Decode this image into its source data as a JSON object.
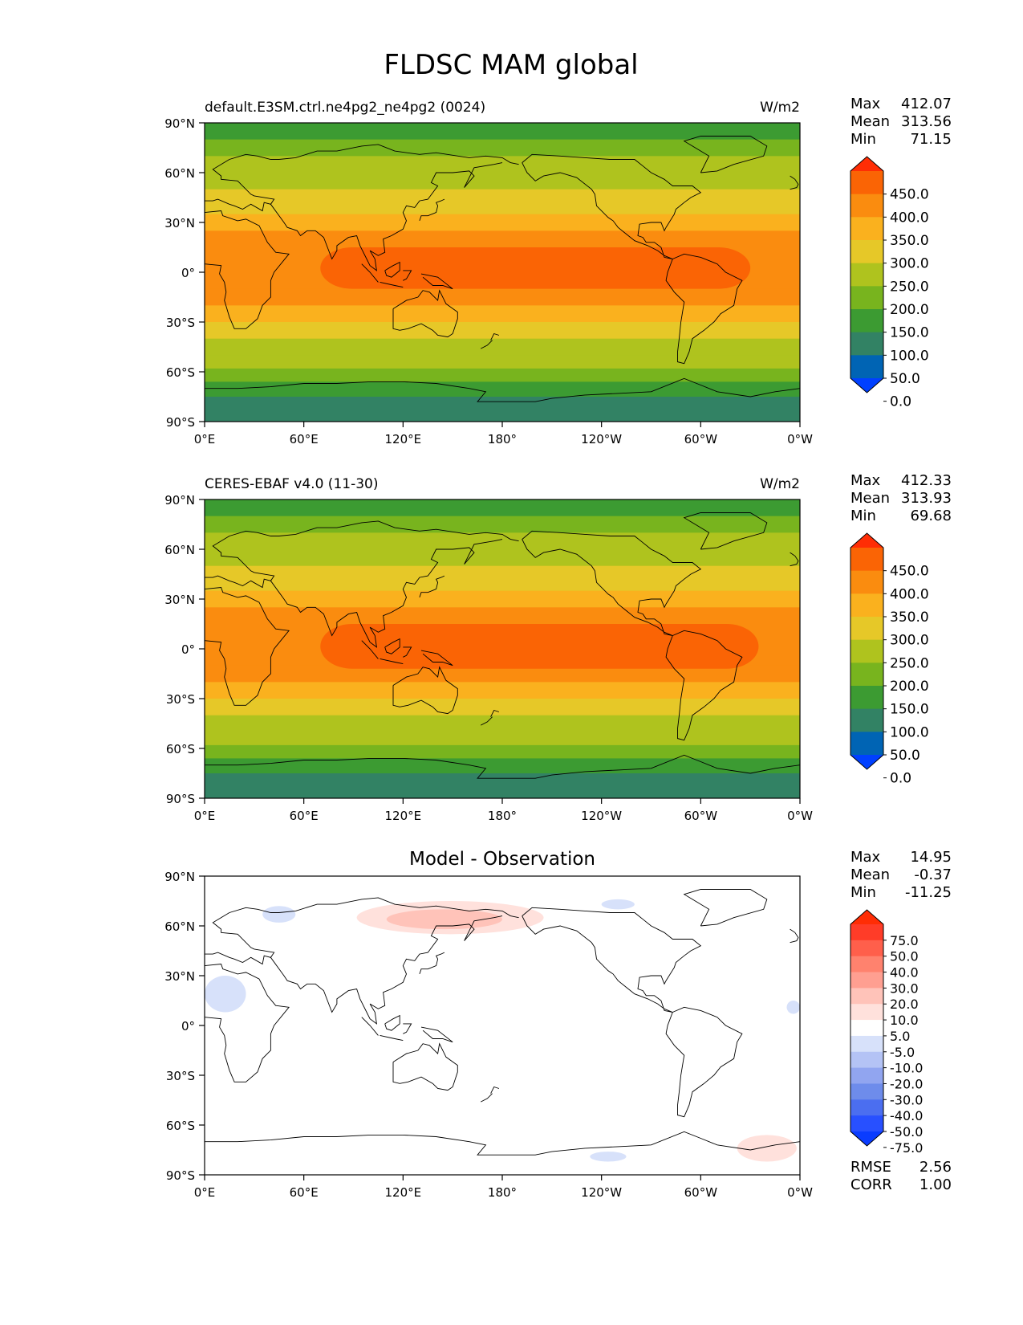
{
  "figure_title": "FLDSC MAM global",
  "colors": {
    "test_levels": [
      "#0040ff",
      "#0064b4",
      "#328264",
      "#3c9b32",
      "#78b41e",
      "#afc31e",
      "#e6c828",
      "#fab11e",
      "#fa8c0f",
      "#fa6405",
      "#ff2d05"
    ],
    "diff_levels": [
      "#0a3cff",
      "#2850ff",
      "#4b6ef0",
      "#6e8ceb",
      "#91a5f0",
      "#b4c3f5",
      "#d7e1fa",
      "#ffffff",
      "#ffe1dc",
      "#ffc3b9",
      "#ff9f91",
      "#ff826e",
      "#ff5f4b",
      "#ff3c28",
      "#ff2d05"
    ]
  },
  "lon_ticks": [
    "0°E",
    "60°E",
    "120°E",
    "180°",
    "120°W",
    "60°W",
    "0°W"
  ],
  "lat_ticks": [
    "90°N",
    "60°N",
    "30°N",
    "0°",
    "30°S",
    "60°S",
    "90°S"
  ],
  "chart_data": [
    {
      "type": "heatmap",
      "left_title": "default.E3SM.ctrl.ne4pg2_ne4pg2 (0024)",
      "units": "W/m2",
      "stats": {
        "labels": [
          "Max",
          "Mean",
          "Min"
        ],
        "values": [
          "412.07",
          "313.56",
          "71.15"
        ]
      },
      "colorbar": {
        "levels": [
          "450.0",
          "400.0",
          "350.0",
          "300.0",
          "250.0",
          "200.0",
          "150.0",
          "100.0",
          "50.0",
          "0.0"
        ]
      },
      "xlim": [
        0,
        360
      ],
      "ylim": [
        -90,
        90
      ],
      "zonal_bands": [
        {
          "lat": [
            80,
            90
          ],
          "value": 140
        },
        {
          "lat": [
            70,
            80
          ],
          "value": 170
        },
        {
          "lat": [
            60,
            70
          ],
          "value": 200
        },
        {
          "lat": [
            50,
            60
          ],
          "value": 230
        },
        {
          "lat": [
            35,
            50
          ],
          "value": 270
        },
        {
          "lat": [
            25,
            35
          ],
          "value": 320
        },
        {
          "lat": [
            15,
            25
          ],
          "value": 360
        },
        {
          "lat": [
            -10,
            15
          ],
          "value": 375
        },
        {
          "lat": [
            -20,
            -10
          ],
          "value": 365
        },
        {
          "lat": [
            -30,
            -20
          ],
          "value": 330
        },
        {
          "lat": [
            -40,
            -30
          ],
          "value": 290
        },
        {
          "lat": [
            -50,
            -40
          ],
          "value": 240
        },
        {
          "lat": [
            -58,
            -50
          ],
          "value": 200
        },
        {
          "lat": [
            -66,
            -58
          ],
          "value": 170
        },
        {
          "lat": [
            -75,
            -66
          ],
          "value": 140
        },
        {
          "lat": [
            -90,
            -75
          ],
          "value": 90
        }
      ],
      "warm_pool": {
        "lon": [
          70,
          330
        ],
        "lat": [
          -10,
          15
        ],
        "value": 410
      }
    },
    {
      "type": "heatmap",
      "left_title": "CERES-EBAF v4.0 (11-30)",
      "units": "W/m2",
      "stats": {
        "labels": [
          "Max",
          "Mean",
          "Min"
        ],
        "values": [
          "412.33",
          "313.93",
          "69.68"
        ]
      },
      "colorbar": {
        "levels": [
          "450.0",
          "400.0",
          "350.0",
          "300.0",
          "250.0",
          "200.0",
          "150.0",
          "100.0",
          "50.0",
          "0.0"
        ]
      },
      "xlim": [
        0,
        360
      ],
      "ylim": [
        -90,
        90
      ],
      "zonal_bands": [
        {
          "lat": [
            80,
            90
          ],
          "value": 140
        },
        {
          "lat": [
            70,
            80
          ],
          "value": 170
        },
        {
          "lat": [
            60,
            70
          ],
          "value": 200
        },
        {
          "lat": [
            50,
            60
          ],
          "value": 230
        },
        {
          "lat": [
            35,
            50
          ],
          "value": 270
        },
        {
          "lat": [
            25,
            35
          ],
          "value": 320
        },
        {
          "lat": [
            15,
            25
          ],
          "value": 360
        },
        {
          "lat": [
            -10,
            15
          ],
          "value": 375
        },
        {
          "lat": [
            -20,
            -10
          ],
          "value": 365
        },
        {
          "lat": [
            -30,
            -20
          ],
          "value": 330
        },
        {
          "lat": [
            -40,
            -30
          ],
          "value": 290
        },
        {
          "lat": [
            -50,
            -40
          ],
          "value": 240
        },
        {
          "lat": [
            -58,
            -50
          ],
          "value": 200
        },
        {
          "lat": [
            -66,
            -58
          ],
          "value": 170
        },
        {
          "lat": [
            -75,
            -66
          ],
          "value": 140
        },
        {
          "lat": [
            -90,
            -75
          ],
          "value": 90
        }
      ],
      "warm_pool": {
        "lon": [
          70,
          335
        ],
        "lat": [
          -12,
          15
        ],
        "value": 410
      }
    },
    {
      "type": "heatmap",
      "center_title": "Model - Observation",
      "stats": {
        "labels": [
          "Max",
          "Mean",
          "Min"
        ],
        "values": [
          "14.95",
          "-0.37",
          "-11.25"
        ]
      },
      "colorbar": {
        "levels": [
          "75.0",
          "50.0",
          "40.0",
          "30.0",
          "20.0",
          "10.0",
          "5.0",
          "-5.0",
          "-10.0",
          "-20.0",
          "-30.0",
          "-40.0",
          "-50.0",
          "-75.0"
        ]
      },
      "metrics": {
        "labels": [
          "RMSE",
          "CORR"
        ],
        "values": [
          "2.56",
          "1.00"
        ]
      },
      "xlim": [
        0,
        360
      ],
      "ylim": [
        -90,
        90
      ],
      "anomalies": [
        {
          "lon": [
            92,
            205
          ],
          "lat": [
            55,
            75
          ],
          "value": 8
        },
        {
          "lon": [
            110,
            180
          ],
          "lat": [
            58,
            70
          ],
          "value": 12
        },
        {
          "lon": [
            0,
            25
          ],
          "lat": [
            8,
            30
          ],
          "value": -7
        },
        {
          "lon": [
            35,
            55
          ],
          "lat": [
            62,
            72
          ],
          "value": -6
        },
        {
          "lon": [
            240,
            260
          ],
          "lat": [
            70,
            76
          ],
          "value": -6
        },
        {
          "lon": [
            233,
            255
          ],
          "lat": [
            -82,
            -76
          ],
          "value": -6
        },
        {
          "lon": [
            322,
            358
          ],
          "lat": [
            -82,
            -66
          ],
          "value": 7
        },
        {
          "lon": [
            352,
            360
          ],
          "lat": [
            7,
            15
          ],
          "value": -6
        }
      ]
    }
  ]
}
